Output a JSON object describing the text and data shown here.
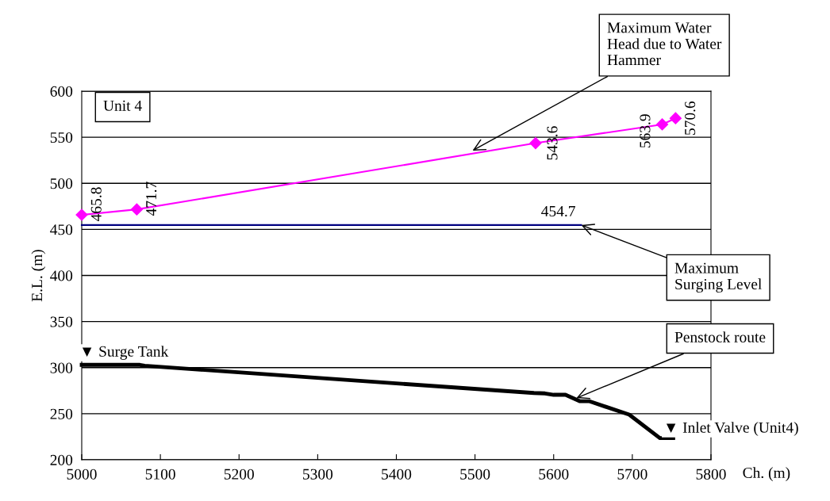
{
  "chart_data": {
    "type": "line",
    "xlabel": "Ch. (m)",
    "ylabel": "E.L. (m)",
    "xlim": [
      5000,
      5800
    ],
    "xticks": [
      5000,
      5100,
      5200,
      5300,
      5400,
      5500,
      5600,
      5700,
      5800
    ],
    "ylim": [
      200,
      600
    ],
    "yticks": [
      200,
      250,
      300,
      350,
      400,
      450,
      500,
      550,
      600
    ],
    "grid": "y",
    "legend": false,
    "series": [
      {
        "color": "#ff00ff",
        "marker": "diamond",
        "x": [
          5000,
          5070,
          5577,
          5738,
          5755
        ],
        "values": [
          465.8,
          471.7,
          543.6,
          563.9,
          570.6
        ],
        "value_labels": [
          "465.8",
          "471.7",
          "543.6",
          "563.9",
          "570.6"
        ]
      },
      {
        "color": "#000080",
        "marker": "none",
        "x": [
          5000,
          5635
        ],
        "values": [
          454.7,
          454.7
        ],
        "value_labels": [
          null,
          "454.7"
        ]
      },
      {
        "color": "#000000",
        "marker": "none",
        "x": [
          5000,
          5074,
          5080,
          5575,
          5589,
          5600,
          5615,
          5633,
          5645,
          5696,
          5735,
          5752
        ],
        "values": [
          303,
          303,
          302,
          272.5,
          272,
          270.5,
          270.5,
          263.6,
          263.6,
          249,
          223.5,
          223.5
        ]
      }
    ],
    "annotations": [
      "Unit 4",
      {
        "text": "Maximum Water\nHead due to Water\nHammer",
        "x": 5497,
        "y": 535.5
      },
      {
        "text": "Maximum\nSurging Level",
        "x": 5635,
        "y": 454.7
      },
      {
        "text": "Penstock route",
        "x": 5629,
        "y": 267
      },
      "▼ Surge Tank",
      "▼ Inlet Valve (Unit4)"
    ]
  }
}
